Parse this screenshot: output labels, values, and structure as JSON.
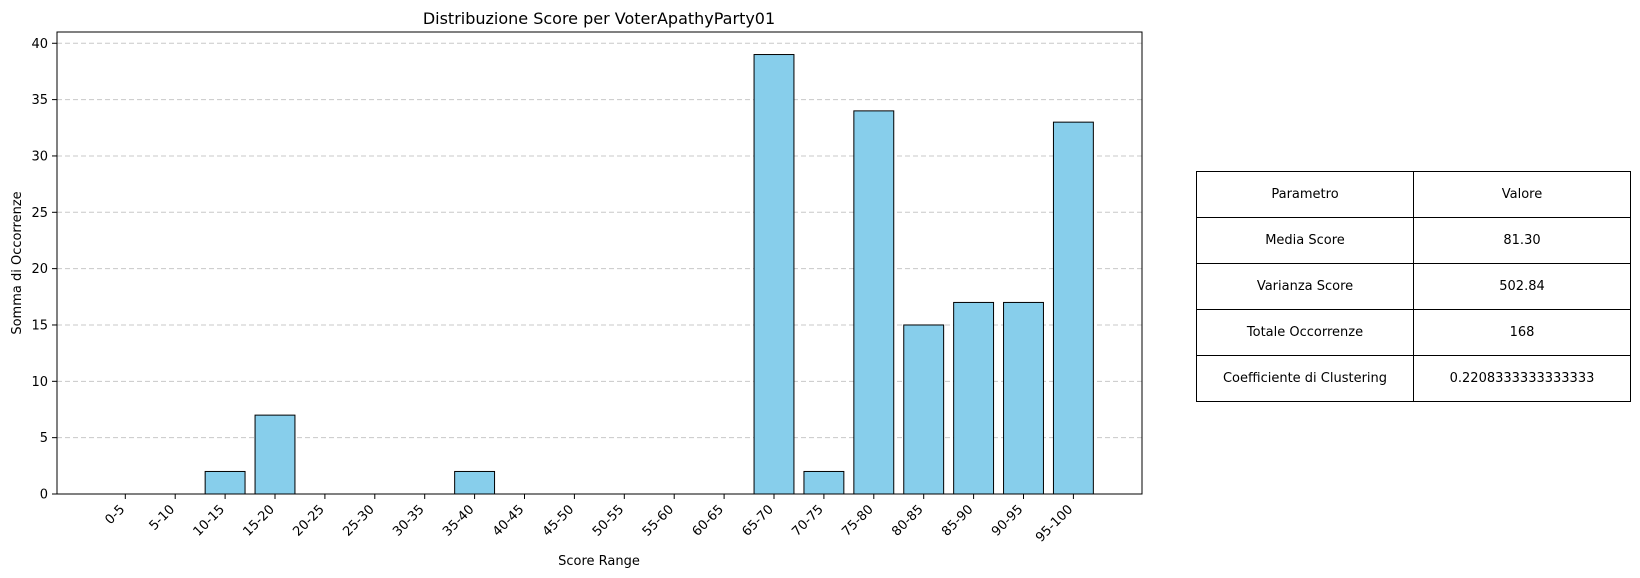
{
  "chart_data": {
    "type": "bar",
    "title": "Distribuzione Score per VoterApathyParty01",
    "xlabel": "Score Range",
    "ylabel": "Somma di Occorrenze",
    "categories": [
      "0-5",
      "5-10",
      "10-15",
      "15-20",
      "20-25",
      "25-30",
      "30-35",
      "35-40",
      "40-45",
      "45-50",
      "50-55",
      "55-60",
      "60-65",
      "65-70",
      "70-75",
      "75-80",
      "80-85",
      "85-90",
      "90-95",
      "95-100"
    ],
    "values": [
      0,
      0,
      2,
      7,
      0,
      0,
      0,
      2,
      0,
      0,
      0,
      0,
      0,
      39,
      2,
      34,
      15,
      17,
      17,
      33
    ],
    "ylim": [
      0,
      41
    ],
    "yticks": [
      0,
      5,
      10,
      15,
      20,
      25,
      30,
      35,
      40
    ],
    "grid": "y-dashed",
    "bar_color": "#87ceeb",
    "edge_color": "#000000"
  },
  "stats_table": {
    "header": [
      "Parametro",
      "Valore"
    ],
    "rows": [
      [
        "Media Score",
        "81.30"
      ],
      [
        "Varianza Score",
        "502.84"
      ],
      [
        "Totale Occorrenze",
        "168"
      ],
      [
        "Coefficiente di Clustering",
        "0.2208333333333333"
      ]
    ]
  }
}
